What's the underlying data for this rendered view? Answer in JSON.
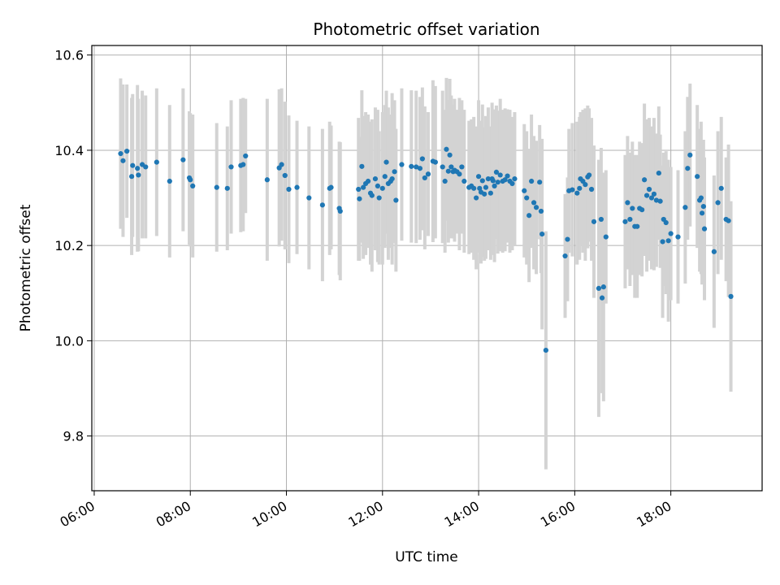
{
  "chart_data": {
    "type": "scatter",
    "title": "Photometric offset variation",
    "xlabel": "UTC time",
    "ylabel": "Photometric offset",
    "x_unit": "hours",
    "xlim": [
      5.95,
      19.9
    ],
    "ylim": [
      9.685,
      10.62
    ],
    "x_ticks": [
      6,
      8,
      10,
      12,
      14,
      16,
      18
    ],
    "x_tick_labels": [
      "06:00",
      "08:00",
      "10:00",
      "12:00",
      "14:00",
      "16:00",
      "18:00"
    ],
    "y_ticks": [
      9.8,
      10.0,
      10.2,
      10.4,
      10.6
    ],
    "y_tick_labels": [
      "9.8",
      "10.0",
      "10.2",
      "10.4",
      "10.6"
    ],
    "grid": true,
    "legend": false,
    "point_color": "#1f77b4",
    "errorbar_color": "#d3d3d3",
    "points": [
      [
        6.55,
        10.393,
        0.158
      ],
      [
        6.6,
        10.378,
        0.16
      ],
      [
        6.68,
        10.398,
        0.14
      ],
      [
        6.78,
        10.345,
        0.165
      ],
      [
        6.8,
        10.368,
        0.15
      ],
      [
        6.9,
        10.362,
        0.175
      ],
      [
        6.92,
        10.348,
        0.16
      ],
      [
        7.0,
        10.37,
        0.155
      ],
      [
        7.07,
        10.365,
        0.15
      ],
      [
        7.3,
        10.375,
        0.155
      ],
      [
        7.57,
        10.335,
        0.16
      ],
      [
        7.85,
        10.38,
        0.15
      ],
      [
        7.98,
        10.342,
        0.14
      ],
      [
        8.0,
        10.338,
        0.14
      ],
      [
        8.05,
        10.325,
        0.15
      ],
      [
        8.55,
        10.322,
        0.135
      ],
      [
        8.77,
        10.32,
        0.13
      ],
      [
        8.85,
        10.365,
        0.14
      ],
      [
        9.05,
        10.368,
        0.14
      ],
      [
        9.1,
        10.37,
        0.14
      ],
      [
        9.15,
        10.388,
        0.12
      ],
      [
        9.6,
        10.338,
        0.17
      ],
      [
        9.85,
        10.363,
        0.165
      ],
      [
        9.9,
        10.37,
        0.16
      ],
      [
        9.97,
        10.347,
        0.155
      ],
      [
        10.05,
        10.318,
        0.155
      ],
      [
        10.22,
        10.322,
        0.14
      ],
      [
        10.47,
        10.3,
        0.15
      ],
      [
        10.75,
        10.285,
        0.16
      ],
      [
        10.9,
        10.32,
        0.14
      ],
      [
        10.93,
        10.322,
        0.13
      ],
      [
        11.1,
        10.278,
        0.14
      ],
      [
        11.12,
        10.272,
        0.145
      ],
      [
        11.5,
        10.318,
        0.15
      ],
      [
        11.52,
        10.298,
        0.13
      ],
      [
        11.57,
        10.366,
        0.16
      ],
      [
        11.6,
        10.322,
        0.15
      ],
      [
        11.65,
        10.33,
        0.15
      ],
      [
        11.7,
        10.335,
        0.14
      ],
      [
        11.75,
        10.31,
        0.15
      ],
      [
        11.78,
        10.305,
        0.16
      ],
      [
        11.85,
        10.34,
        0.15
      ],
      [
        11.9,
        10.325,
        0.16
      ],
      [
        11.93,
        10.3,
        0.14
      ],
      [
        12.0,
        10.32,
        0.16
      ],
      [
        12.05,
        10.345,
        0.15
      ],
      [
        12.08,
        10.375,
        0.15
      ],
      [
        12.12,
        10.33,
        0.16
      ],
      [
        12.17,
        10.335,
        0.14
      ],
      [
        12.2,
        10.34,
        0.18
      ],
      [
        12.25,
        10.355,
        0.15
      ],
      [
        12.28,
        10.295,
        0.15
      ],
      [
        12.4,
        10.37,
        0.16
      ],
      [
        12.6,
        10.366,
        0.16
      ],
      [
        12.7,
        10.365,
        0.16
      ],
      [
        12.78,
        10.362,
        0.15
      ],
      [
        12.83,
        10.382,
        0.15
      ],
      [
        12.88,
        10.342,
        0.15
      ],
      [
        12.95,
        10.35,
        0.13
      ],
      [
        13.05,
        10.377,
        0.17
      ],
      [
        13.1,
        10.375,
        0.16
      ],
      [
        13.25,
        10.365,
        0.16
      ],
      [
        13.3,
        10.335,
        0.15
      ],
      [
        13.33,
        10.402,
        0.15
      ],
      [
        13.37,
        10.356,
        0.15
      ],
      [
        13.4,
        10.39,
        0.16
      ],
      [
        13.43,
        10.365,
        0.15
      ],
      [
        13.47,
        10.355,
        0.14
      ],
      [
        13.5,
        10.358,
        0.15
      ],
      [
        13.55,
        10.355,
        0.13
      ],
      [
        13.6,
        10.35,
        0.16
      ],
      [
        13.65,
        10.365,
        0.14
      ],
      [
        13.7,
        10.335,
        0.15
      ],
      [
        13.8,
        10.322,
        0.14
      ],
      [
        13.85,
        10.325,
        0.14
      ],
      [
        13.9,
        10.32,
        0.15
      ],
      [
        13.95,
        10.3,
        0.15
      ],
      [
        14.0,
        10.345,
        0.16
      ],
      [
        14.02,
        10.32,
        0.14
      ],
      [
        14.05,
        10.312,
        0.15
      ],
      [
        14.08,
        10.336,
        0.16
      ],
      [
        14.12,
        10.308,
        0.14
      ],
      [
        14.15,
        10.322,
        0.15
      ],
      [
        14.2,
        10.34,
        0.15
      ],
      [
        14.25,
        10.31,
        0.14
      ],
      [
        14.28,
        10.34,
        0.16
      ],
      [
        14.3,
        10.336,
        0.15
      ],
      [
        14.33,
        10.325,
        0.16
      ],
      [
        14.37,
        10.354,
        0.14
      ],
      [
        14.4,
        10.333,
        0.15
      ],
      [
        14.45,
        10.348,
        0.16
      ],
      [
        14.5,
        10.335,
        0.15
      ],
      [
        14.55,
        10.338,
        0.15
      ],
      [
        14.6,
        10.346,
        0.14
      ],
      [
        14.65,
        10.335,
        0.15
      ],
      [
        14.7,
        10.33,
        0.14
      ],
      [
        14.75,
        10.34,
        0.14
      ],
      [
        14.95,
        10.315,
        0.14
      ],
      [
        15.0,
        10.3,
        0.14
      ],
      [
        15.05,
        10.263,
        0.14
      ],
      [
        15.1,
        10.335,
        0.14
      ],
      [
        15.15,
        10.29,
        0.14
      ],
      [
        15.2,
        10.28,
        0.14
      ],
      [
        15.27,
        10.333,
        0.12
      ],
      [
        15.3,
        10.272,
        0.13
      ],
      [
        15.32,
        10.224,
        0.2
      ],
      [
        15.4,
        9.98,
        0.25
      ],
      [
        15.8,
        10.178,
        0.13
      ],
      [
        15.85,
        10.213,
        0.13
      ],
      [
        15.88,
        10.315,
        0.13
      ],
      [
        15.95,
        10.317,
        0.14
      ],
      [
        16.05,
        10.31,
        0.15
      ],
      [
        16.1,
        10.32,
        0.15
      ],
      [
        16.12,
        10.34,
        0.14
      ],
      [
        16.17,
        10.335,
        0.15
      ],
      [
        16.22,
        10.328,
        0.16
      ],
      [
        16.27,
        10.344,
        0.15
      ],
      [
        16.3,
        10.348,
        0.14
      ],
      [
        16.35,
        10.318,
        0.15
      ],
      [
        16.4,
        10.25,
        0.16
      ],
      [
        16.5,
        10.11,
        0.27
      ],
      [
        16.55,
        10.255,
        0.15
      ],
      [
        16.57,
        10.09,
        0.2
      ],
      [
        16.6,
        10.113,
        0.24
      ],
      [
        16.65,
        10.218,
        0.14
      ],
      [
        17.05,
        10.25,
        0.14
      ],
      [
        17.1,
        10.29,
        0.14
      ],
      [
        17.15,
        10.255,
        0.14
      ],
      [
        17.2,
        10.278,
        0.14
      ],
      [
        17.25,
        10.24,
        0.15
      ],
      [
        17.3,
        10.24,
        0.15
      ],
      [
        17.35,
        10.278,
        0.14
      ],
      [
        17.4,
        10.275,
        0.14
      ],
      [
        17.45,
        10.338,
        0.16
      ],
      [
        17.5,
        10.305,
        0.16
      ],
      [
        17.55,
        10.318,
        0.15
      ],
      [
        17.6,
        10.3,
        0.15
      ],
      [
        17.65,
        10.308,
        0.16
      ],
      [
        17.7,
        10.295,
        0.14
      ],
      [
        17.75,
        10.352,
        0.14
      ],
      [
        17.78,
        10.293,
        0.14
      ],
      [
        17.83,
        10.208,
        0.16
      ],
      [
        17.85,
        10.255,
        0.14
      ],
      [
        17.9,
        10.248,
        0.15
      ],
      [
        17.95,
        10.21,
        0.17
      ],
      [
        18.0,
        10.225,
        0.14
      ],
      [
        18.15,
        10.218,
        0.14
      ],
      [
        18.3,
        10.28,
        0.16
      ],
      [
        18.35,
        10.362,
        0.15
      ],
      [
        18.4,
        10.39,
        0.15
      ],
      [
        18.55,
        10.345,
        0.15
      ],
      [
        18.6,
        10.295,
        0.15
      ],
      [
        18.63,
        10.3,
        0.16
      ],
      [
        18.65,
        10.268,
        0.15
      ],
      [
        18.68,
        10.282,
        0.14
      ],
      [
        18.7,
        10.235,
        0.15
      ],
      [
        18.9,
        10.187,
        0.16
      ],
      [
        18.98,
        10.29,
        0.15
      ],
      [
        19.05,
        10.32,
        0.15
      ],
      [
        19.15,
        10.255,
        0.13
      ],
      [
        19.2,
        10.252,
        0.16
      ],
      [
        19.25,
        10.093,
        0.2
      ]
    ]
  }
}
